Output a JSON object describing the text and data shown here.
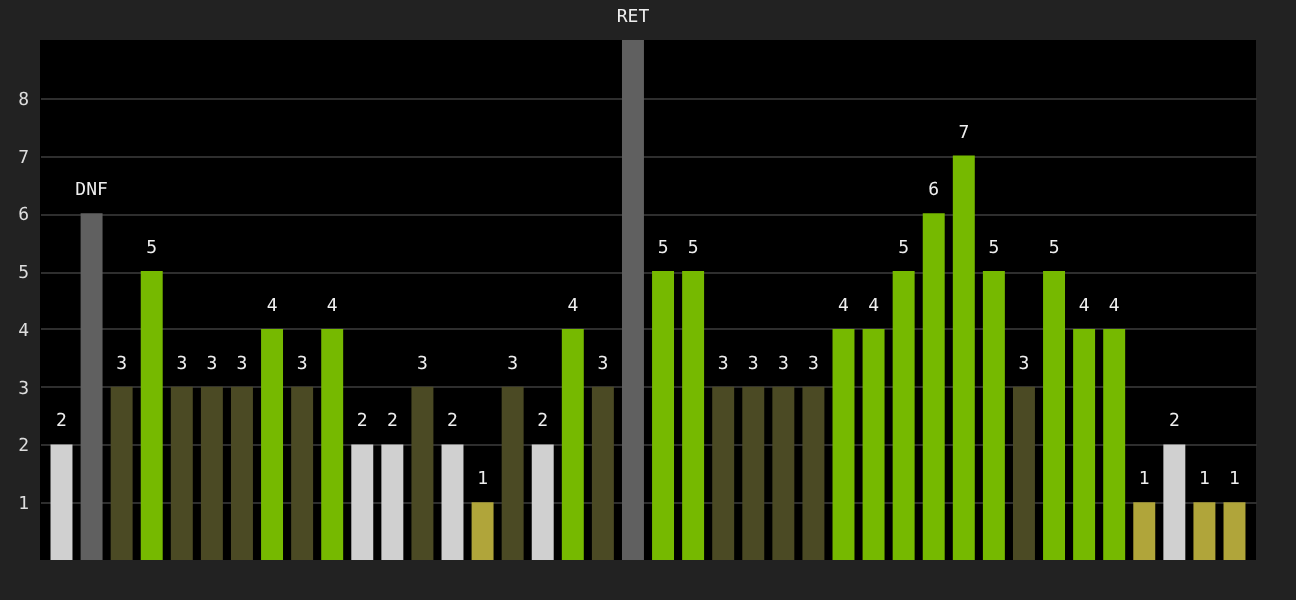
{
  "chart_data": {
    "type": "bar",
    "categories": [
      null,
      null,
      null,
      null,
      null,
      null,
      null,
      null,
      null,
      null,
      null,
      null,
      null,
      null,
      null,
      null,
      null,
      null,
      null,
      null,
      null,
      null,
      null,
      null,
      null,
      null,
      null,
      null,
      null,
      null,
      null,
      null,
      null,
      null,
      null,
      null,
      null,
      null,
      null,
      null
    ],
    "values": [
      2,
      6,
      3,
      5,
      3,
      3,
      3,
      4,
      3,
      4,
      2,
      2,
      3,
      2,
      1,
      3,
      2,
      4,
      3,
      9,
      5,
      5,
      3,
      3,
      3,
      3,
      4,
      4,
      5,
      6,
      7,
      5,
      3,
      5,
      4,
      4,
      1,
      2,
      1,
      1
    ],
    "colors": [
      "#d0d0d0",
      "#606060",
      "#4b4a24",
      "#76b900",
      "#4b4a24",
      "#4b4a24",
      "#4b4a24",
      "#76b900",
      "#4b4a24",
      "#76b900",
      "#d0d0d0",
      "#d0d0d0",
      "#4b4a24",
      "#d0d0d0",
      "#b0a53a",
      "#4b4a24",
      "#d0d0d0",
      "#76b900",
      "#4b4a24",
      "#606060",
      "#76b900",
      "#76b900",
      "#4b4a24",
      "#4b4a24",
      "#4b4a24",
      "#4b4a24",
      "#76b900",
      "#76b900",
      "#76b900",
      "#76b900",
      "#76b900",
      "#76b900",
      "#4b4a24",
      "#76b900",
      "#76b900",
      "#76b900",
      "#b0a53a",
      "#d0d0d0",
      "#b0a53a",
      "#b0a53a"
    ],
    "value_labels": [
      "2",
      "DNF",
      "3",
      "5",
      "3",
      "3",
      "3",
      "4",
      "3",
      "4",
      "2",
      "2",
      "3",
      "2",
      "1",
      "3",
      "2",
      "4",
      "3",
      "RET",
      "5",
      "5",
      "3",
      "3",
      "3",
      "3",
      "4",
      "4",
      "5",
      "6",
      "7",
      "5",
      "3",
      "5",
      "4",
      "4",
      "1",
      "2",
      "1",
      "1"
    ],
    "ylim": [
      0,
      9
    ],
    "yticks": [
      1,
      2,
      3,
      4,
      5,
      6,
      7,
      8
    ],
    "grid": "y",
    "tick_labels": "y"
  }
}
